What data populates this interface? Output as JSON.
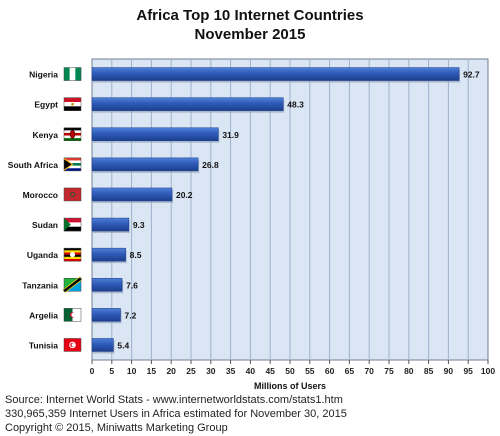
{
  "chart_data": {
    "type": "bar",
    "orientation": "horizontal",
    "title": "Africa Top 10 Internet Countries",
    "subtitle": "November 2015",
    "xlabel": "Millions of Users",
    "ylabel": "",
    "xlim": [
      0,
      100
    ],
    "x_ticks": [
      0,
      5,
      10,
      15,
      20,
      25,
      30,
      35,
      40,
      45,
      50,
      55,
      60,
      65,
      70,
      75,
      80,
      85,
      90,
      95,
      100
    ],
    "grid": true,
    "categories": [
      "Nigeria",
      "Egypt",
      "Kenya",
      "South Africa",
      "Morocco",
      "Sudan",
      "Uganda",
      "Tanzania",
      "Argelia",
      "Tunisia"
    ],
    "values": [
      92.7,
      48.3,
      31.9,
      26.8,
      20.2,
      9.3,
      8.5,
      7.6,
      7.2,
      5.4
    ],
    "value_labels": [
      "92.7",
      "48.3",
      "31.9",
      "26.8",
      "20.2",
      "9.3",
      "8.5",
      "7.6",
      "7.2",
      "5.4"
    ],
    "flag_icons": [
      "nigeria-flag-icon",
      "egypt-flag-icon",
      "kenya-flag-icon",
      "south-africa-flag-icon",
      "morocco-flag-icon",
      "sudan-flag-icon",
      "uganda-flag-icon",
      "tanzania-flag-icon",
      "algeria-flag-icon",
      "tunisia-flag-icon"
    ],
    "colors": {
      "bar": "#2e5ab8",
      "bar_dark": "#1c3f8c",
      "plot_background": "#dbe6f4",
      "gridline": "#9fb2cc"
    }
  },
  "footer": {
    "source": "Source: Internet World Stats - www.internetworldstats.com/stats1.htm",
    "estimate": "330,965,359 Internet Users in Africa estimated for November 30, 2015",
    "copyright": "Copyright © 2015, Miniwatts Marketing Group"
  }
}
